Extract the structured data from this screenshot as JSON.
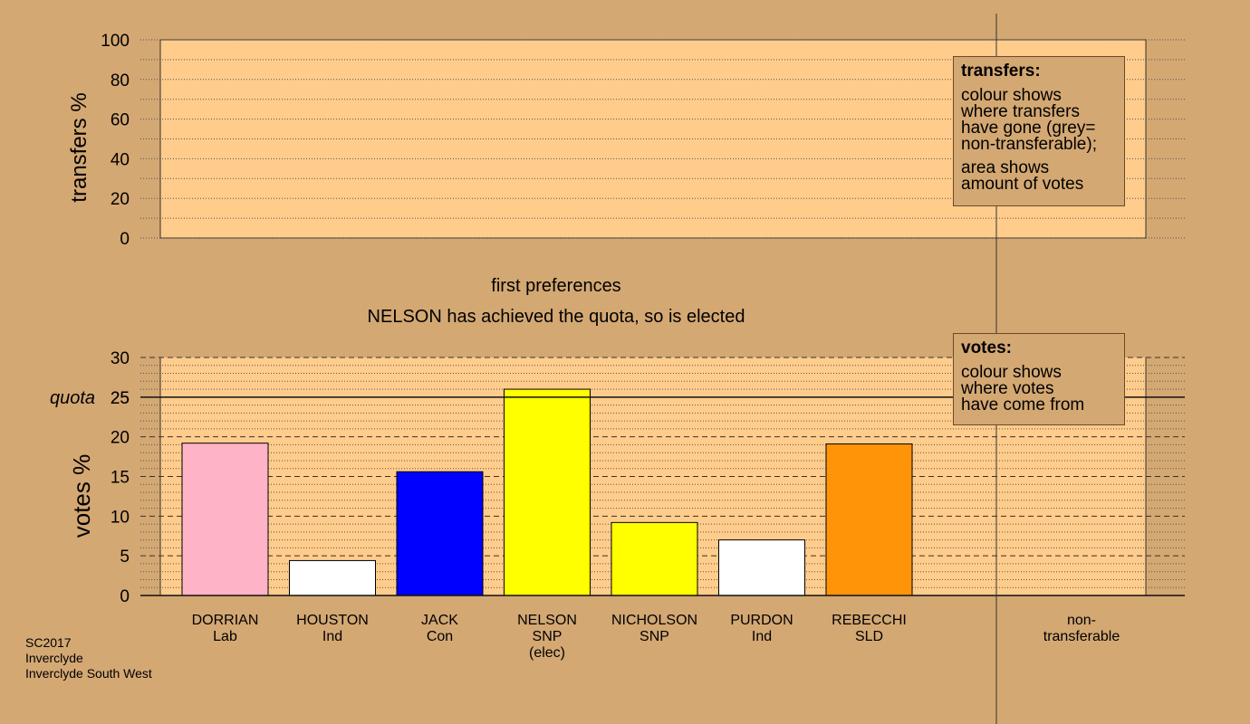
{
  "chart_data": [
    {
      "type": "bar",
      "panel": "transfers",
      "ylabel": "transfers %",
      "ylim": [
        0,
        100
      ],
      "yticks": [
        0,
        20,
        40,
        60,
        80,
        100
      ],
      "grid": true,
      "series": []
    },
    {
      "type": "bar",
      "panel": "votes",
      "title": "first preferences",
      "subtitle": "NELSON has achieved the quota, so is elected",
      "ylabel": "votes %",
      "ylim": [
        0,
        30
      ],
      "yticks": [
        0,
        5,
        10,
        15,
        20,
        25,
        30
      ],
      "quota": 25,
      "quota_label": "quota",
      "grid": true,
      "categories": [
        {
          "name": "DORRIAN",
          "party": "Lab",
          "note": "",
          "value": 19.2,
          "color": "#ffb3c6"
        },
        {
          "name": "HOUSTON",
          "party": "Ind",
          "note": "",
          "value": 4.4,
          "color": "#ffffff"
        },
        {
          "name": "JACK",
          "party": "Con",
          "note": "",
          "value": 15.6,
          "color": "#0000ff"
        },
        {
          "name": "NELSON",
          "party": "SNP",
          "note": "(elec)",
          "value": 26.0,
          "color": "#ffff00"
        },
        {
          "name": "NICHOLSON",
          "party": "SNP",
          "note": "",
          "value": 9.2,
          "color": "#ffff00"
        },
        {
          "name": "PURDON",
          "party": "Ind",
          "note": "",
          "value": 7.0,
          "color": "#ffffff"
        },
        {
          "name": "REBECCHI",
          "party": "SLD",
          "note": "",
          "value": 19.1,
          "color": "#ff9408"
        }
      ],
      "extra_category": [
        "non-",
        "transferable"
      ]
    }
  ],
  "legends": {
    "transfers": {
      "title": "transfers:",
      "lines": [
        "colour shows",
        "where transfers",
        "have gone (grey=",
        "non-transferable);"
      ],
      "lines2": [
        "area shows",
        "amount of votes"
      ]
    },
    "votes": {
      "title": "votes:",
      "lines": [
        "colour shows",
        "where votes",
        "have come from"
      ]
    }
  },
  "footer": [
    "SC2017",
    "Inverclyde",
    "Inverclyde South West"
  ],
  "colors": {
    "background": "#d4a873",
    "plot_fill": "#ffcc8c",
    "bar_stroke": "#000000"
  }
}
